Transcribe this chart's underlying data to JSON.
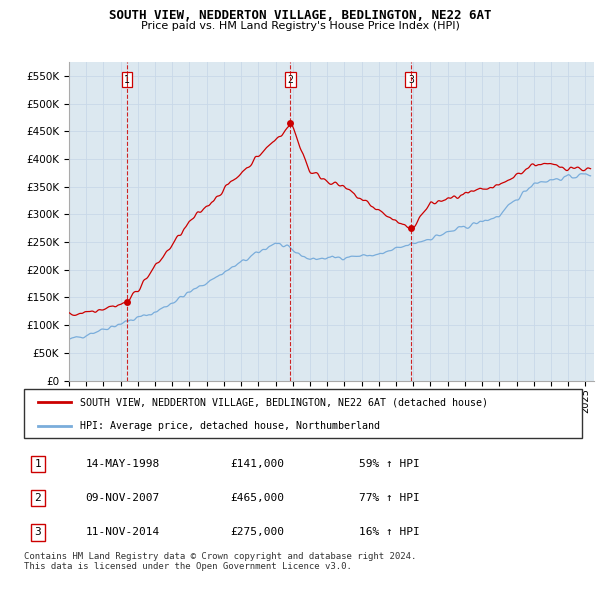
{
  "title": "SOUTH VIEW, NEDDERTON VILLAGE, BEDLINGTON, NE22 6AT",
  "subtitle": "Price paid vs. HM Land Registry's House Price Index (HPI)",
  "ylim": [
    0,
    575000
  ],
  "yticks": [
    0,
    50000,
    100000,
    150000,
    200000,
    250000,
    300000,
    350000,
    400000,
    450000,
    500000,
    550000
  ],
  "ytick_labels": [
    "£0",
    "£50K",
    "£100K",
    "£150K",
    "£200K",
    "£250K",
    "£300K",
    "£350K",
    "£400K",
    "£450K",
    "£500K",
    "£550K"
  ],
  "sale_color": "#cc0000",
  "hpi_color": "#7aaddb",
  "vline_color": "#cc0000",
  "grid_color": "#c8d8e8",
  "plot_bg_color": "#dce8f0",
  "bg_color": "#ffffff",
  "transactions": [
    {
      "date": 1998.37,
      "price": 141000,
      "label": "1"
    },
    {
      "date": 2007.86,
      "price": 465000,
      "label": "2"
    },
    {
      "date": 2014.86,
      "price": 275000,
      "label": "3"
    }
  ],
  "table_rows": [
    [
      "1",
      "14-MAY-1998",
      "£141,000",
      "59% ↑ HPI"
    ],
    [
      "2",
      "09-NOV-2007",
      "£465,000",
      "77% ↑ HPI"
    ],
    [
      "3",
      "11-NOV-2014",
      "£275,000",
      "16% ↑ HPI"
    ]
  ],
  "legend_line1": "SOUTH VIEW, NEDDERTON VILLAGE, BEDLINGTON, NE22 6AT (detached house)",
  "legend_line2": "HPI: Average price, detached house, Northumberland",
  "footer": "Contains HM Land Registry data © Crown copyright and database right 2024.\nThis data is licensed under the Open Government Licence v3.0.",
  "xmin": 1995.0,
  "xmax": 2025.5,
  "xticks": [
    1995,
    1996,
    1997,
    1998,
    1999,
    2000,
    2001,
    2002,
    2003,
    2004,
    2005,
    2006,
    2007,
    2008,
    2009,
    2010,
    2011,
    2012,
    2013,
    2014,
    2015,
    2016,
    2017,
    2018,
    2019,
    2020,
    2021,
    2022,
    2023,
    2024,
    2025
  ]
}
